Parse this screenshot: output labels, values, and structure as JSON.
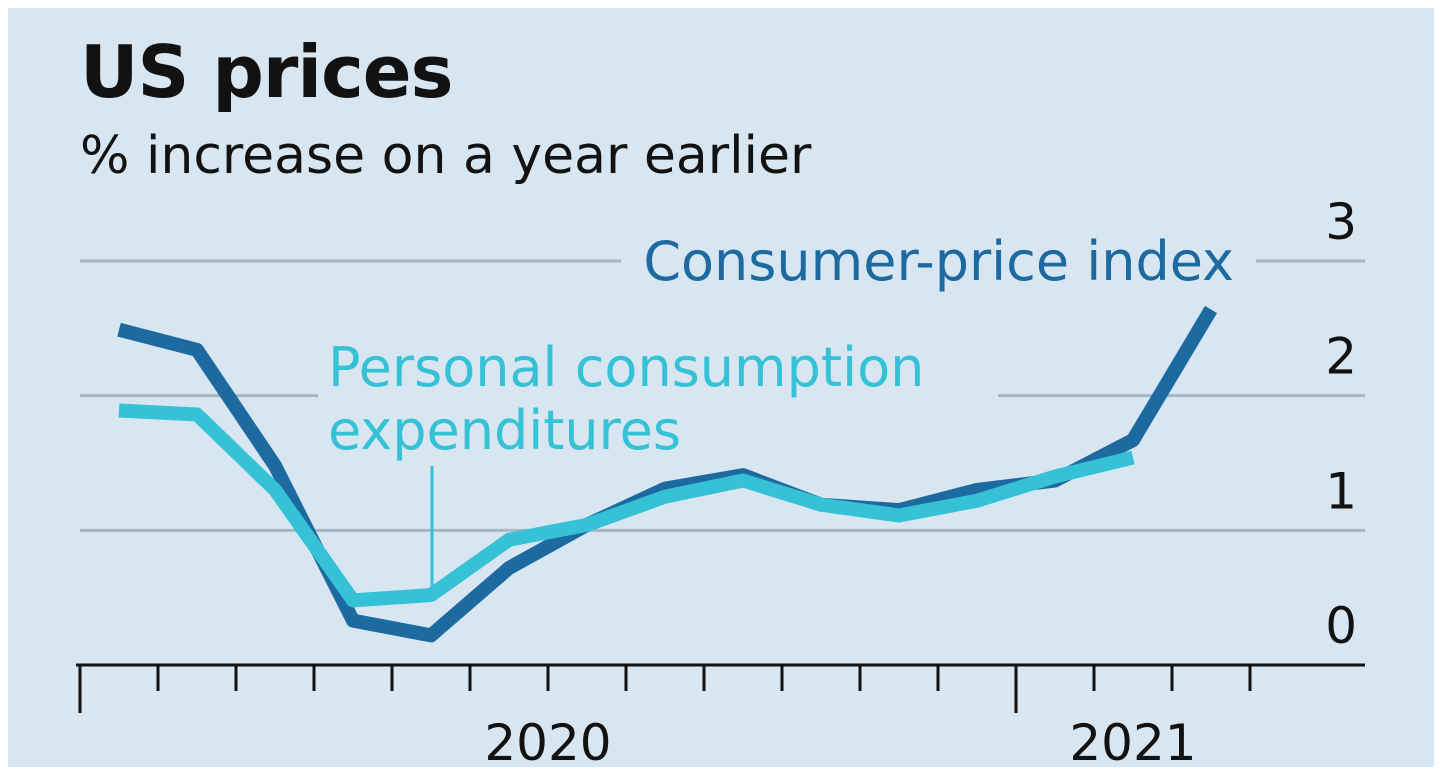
{
  "chart_data": {
    "type": "line",
    "title": "US prices",
    "subtitle": "% increase on a year earlier",
    "categories": [
      null,
      null,
      null,
      null,
      null,
      null,
      null,
      null,
      null,
      null,
      null,
      null,
      null,
      null,
      null
    ],
    "x_groups": [
      {
        "label": "2020",
        "count": 12
      },
      {
        "label": "2021",
        "count": 3
      }
    ],
    "series": [
      {
        "name": "Consumer-price index",
        "color": "#1d6aa1",
        "values": [
          2.49,
          2.34,
          1.48,
          0.33,
          0.22,
          0.72,
          1.04,
          1.31,
          1.41,
          1.19,
          1.15,
          1.3,
          1.37,
          1.67,
          2.64
        ]
      },
      {
        "name": "Personal consumption expenditures",
        "color": "#35c1d6",
        "values": [
          1.89,
          1.86,
          1.3,
          0.48,
          0.52,
          0.93,
          1.04,
          1.25,
          1.37,
          1.19,
          1.11,
          1.22,
          1.4,
          1.54,
          null
        ]
      }
    ],
    "ylim": [
      0,
      3
    ],
    "yticks": [
      0,
      1,
      2,
      3
    ],
    "grid": true
  }
}
